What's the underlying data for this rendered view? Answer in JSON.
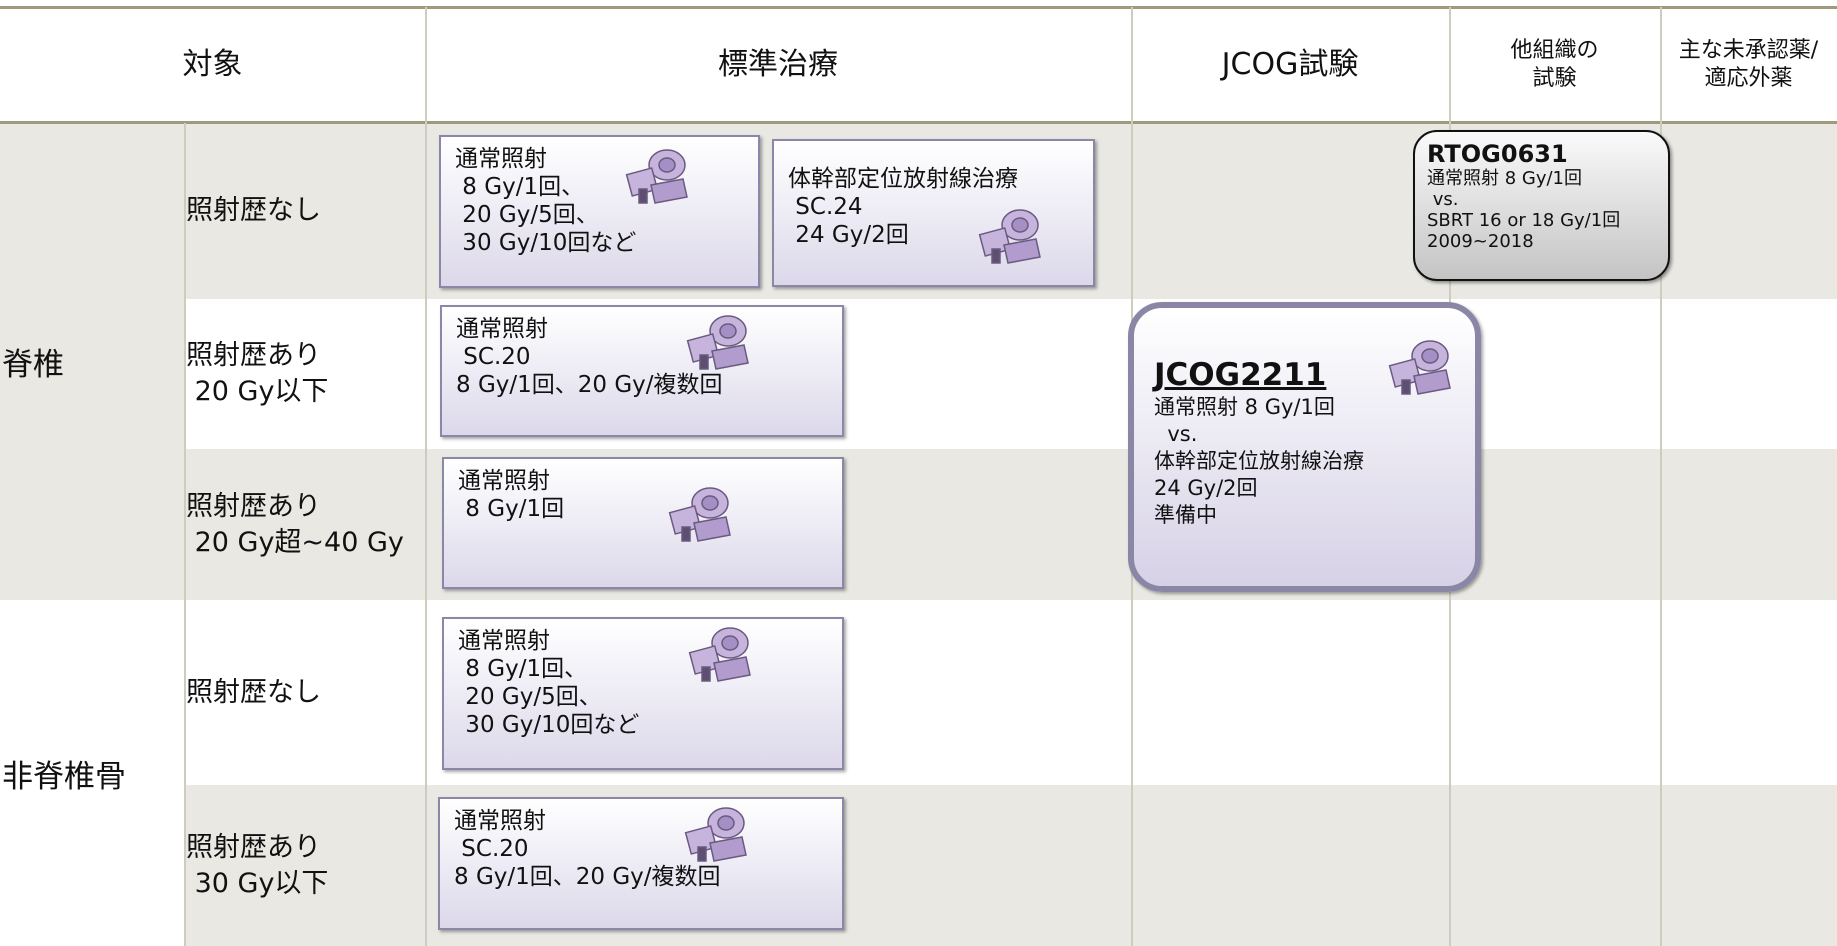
{
  "header": [
    [
      "対象"
    ],
    [
      "標準治療"
    ],
    [
      "JCOG試験"
    ],
    [
      "他組織の",
      "試験"
    ],
    [
      "主な未承認薬/",
      "適応外薬"
    ]
  ],
  "groups": [
    "脊椎",
    "非脊椎骨"
  ],
  "rows": [
    [
      "照射歴なし"
    ],
    [
      "照射歴あり",
      " 20 Gy以下"
    ],
    [
      "照射歴あり",
      " 20 Gy超~40 Gy"
    ],
    [
      "照射歴なし"
    ],
    [
      "照射歴あり",
      " 30 Gy以下"
    ]
  ],
  "standard": [
    [
      "通常照射",
      " 8 Gy/1回、",
      " 20 Gy/5回、",
      " 30 Gy/10回など"
    ],
    [
      "体幹部定位放射線治療",
      " SC.24",
      " 24 Gy/2回"
    ],
    [
      "通常照射",
      " SC.20",
      "8 Gy/1回、20 Gy/複数回"
    ],
    [
      "通常照射",
      " 8 Gy/1回"
    ],
    [
      "通常照射",
      " 8 Gy/1回、",
      " 20 Gy/5回、",
      " 30 Gy/10回など"
    ],
    [
      "通常照射",
      " SC.20",
      "8 Gy/1回、20 Gy/複数回"
    ]
  ],
  "jcog": {
    "id": "JCOG2211",
    "lines": [
      "通常照射 8 Gy/1回",
      "  vs.",
      "体幹部定位放射線治療",
      "24 Gy/2回",
      "準備中"
    ]
  },
  "other": {
    "id": "RTOG0631",
    "lines": [
      "通常照射 8 Gy/1回",
      " vs.",
      "SBRT 16 or 18 Gy/1回",
      "2009~2018"
    ]
  }
}
